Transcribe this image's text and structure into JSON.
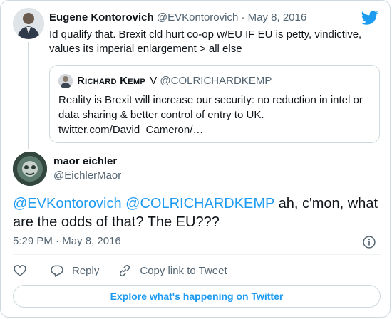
{
  "parent_tweet": {
    "author_name": "Eugene Kontorovich",
    "author_handle": "@EVKontorovich",
    "separator": "·",
    "date": "May 8, 2016",
    "text": "Id qualify that. Brexit cld hurt co-op w/EU IF EU is petty, vindictive, values its imperial enlargement > all else"
  },
  "quoted_tweet": {
    "author_name": "Richard Kemp",
    "verified_mark": "V",
    "author_handle": "@COLRICHARDKEMP",
    "text": "Reality is Brexit will increase our security: no reduction in intel or data sharing & better control of entry to UK. twitter.com/David_Cameron/…"
  },
  "main_tweet": {
    "author_name": "maor eichler",
    "author_handle": "@EichlerMaor",
    "mention_1": "@EVKontorovich",
    "mention_2": "@COLRICHARDKEMP",
    "text": " ah, c'mon, what are the odds of that? The EU???",
    "time": "5:29 PM",
    "separator": "·",
    "date": "May 8, 2016"
  },
  "actions": {
    "reply_label": "Reply",
    "copy_label": "Copy link to Tweet"
  },
  "cta_label": "Explore what's happening on Twitter",
  "colors": {
    "accent": "#1d9bf0",
    "muted": "#536471",
    "text": "#0f1419",
    "border": "#cfd9de"
  },
  "icons": [
    "twitter-bird-icon",
    "info-icon",
    "heart-icon",
    "reply-icon",
    "link-icon"
  ]
}
